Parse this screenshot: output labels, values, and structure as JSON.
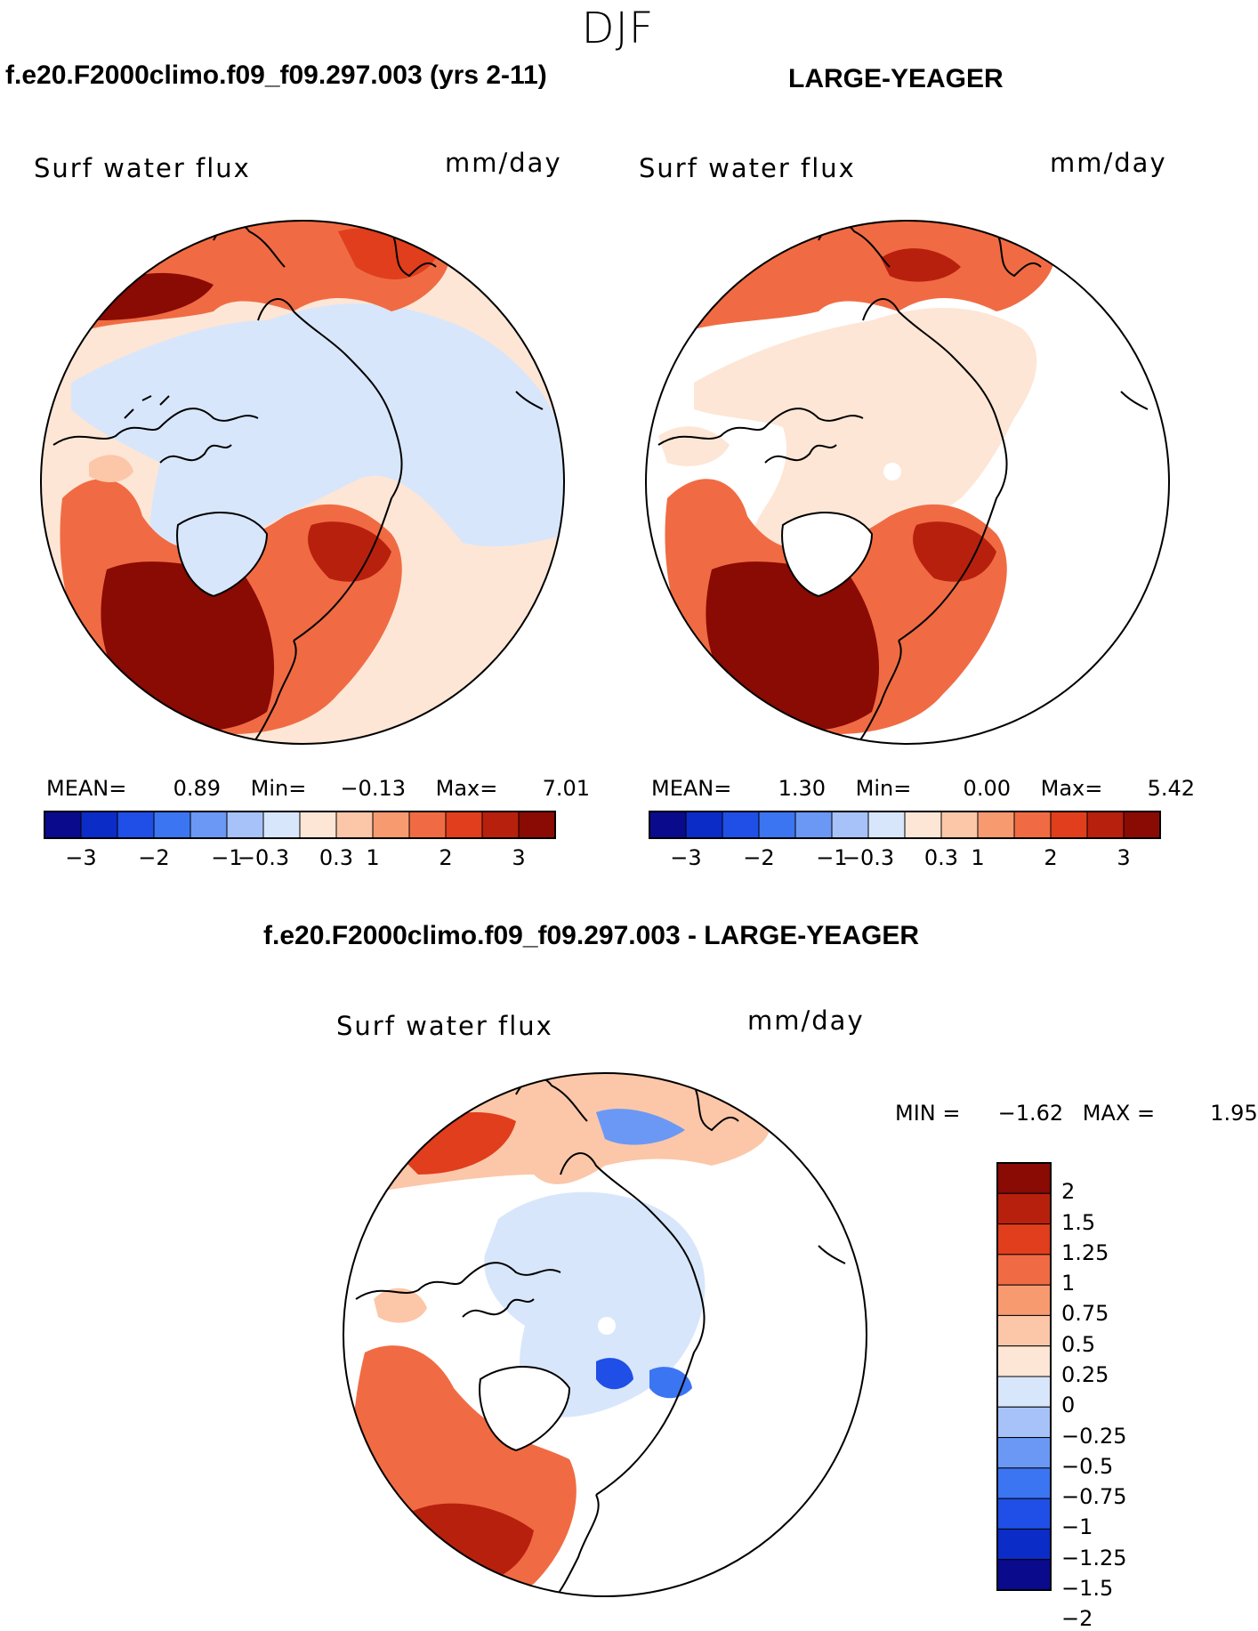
{
  "figure": {
    "season": "DJF",
    "diff_title": "f.e20.F2000climo.f09_f09.297.003 - LARGE-YEAGER"
  },
  "panels": [
    {
      "title": "f.e20.F2000climo.f09_f09.297.003 (yrs 2-11)",
      "field_label": "Surf water flux",
      "units": "mm/day",
      "stats": {
        "mean_label": "MEAN=",
        "mean": "0.89",
        "min_label": "Min=",
        "min": "−0.13",
        "max_label": "Max=",
        "max": "7.01"
      }
    },
    {
      "title": "LARGE-YEAGER",
      "field_label": "Surf water flux",
      "units": "mm/day",
      "stats": {
        "mean_label": "MEAN=",
        "mean": "1.30",
        "min_label": "Min=",
        "min": "0.00",
        "max_label": "Max=",
        "max": "5.42"
      }
    },
    {
      "field_label": "Surf water flux",
      "units": "mm/day",
      "stats": {
        "min_label": "MIN =",
        "min": "−1.62",
        "max_label": "MAX =",
        "max": "1.95"
      }
    }
  ],
  "colorbar_main": {
    "colors": [
      "#0a0a8c",
      "#0b2cc7",
      "#1f4fe6",
      "#3b75f2",
      "#6b98f5",
      "#a6c2f8",
      "#d8e6fb",
      "#fde6d6",
      "#fbc7a8",
      "#f79a70",
      "#f06b43",
      "#e03e1c",
      "#b8200e",
      "#8a0a04"
    ],
    "tick_labels": [
      "−3",
      "−2",
      "−1",
      "−0.3",
      "0.3",
      "1",
      "2",
      "3"
    ]
  },
  "colorbar_diff": {
    "colors_top_to_bottom": [
      "#8a0a04",
      "#b8200e",
      "#e03e1c",
      "#f06b43",
      "#f79a70",
      "#fbc7a8",
      "#fde6d6",
      "#d8e6fb",
      "#a6c2f8",
      "#6b98f5",
      "#3b75f2",
      "#1f4fe6",
      "#0b2cc7",
      "#0a0a8c"
    ],
    "tick_labels": [
      "2",
      "1.5",
      "1.25",
      "1",
      "0.75",
      "0.5",
      "0.25",
      "0",
      "−0.25",
      "−0.5",
      "−0.75",
      "−1",
      "−1.25",
      "−1.5",
      "−2"
    ]
  },
  "map_colors": {
    "bg": "#fde6d6",
    "light_blue": "#d8e6fb",
    "pale_orange": "#fbc7a8",
    "orange": "#f06b43",
    "red": "#e03e1c",
    "dark_red": "#8a0a04",
    "blue": "#3b75f2",
    "white": "#ffffff"
  }
}
